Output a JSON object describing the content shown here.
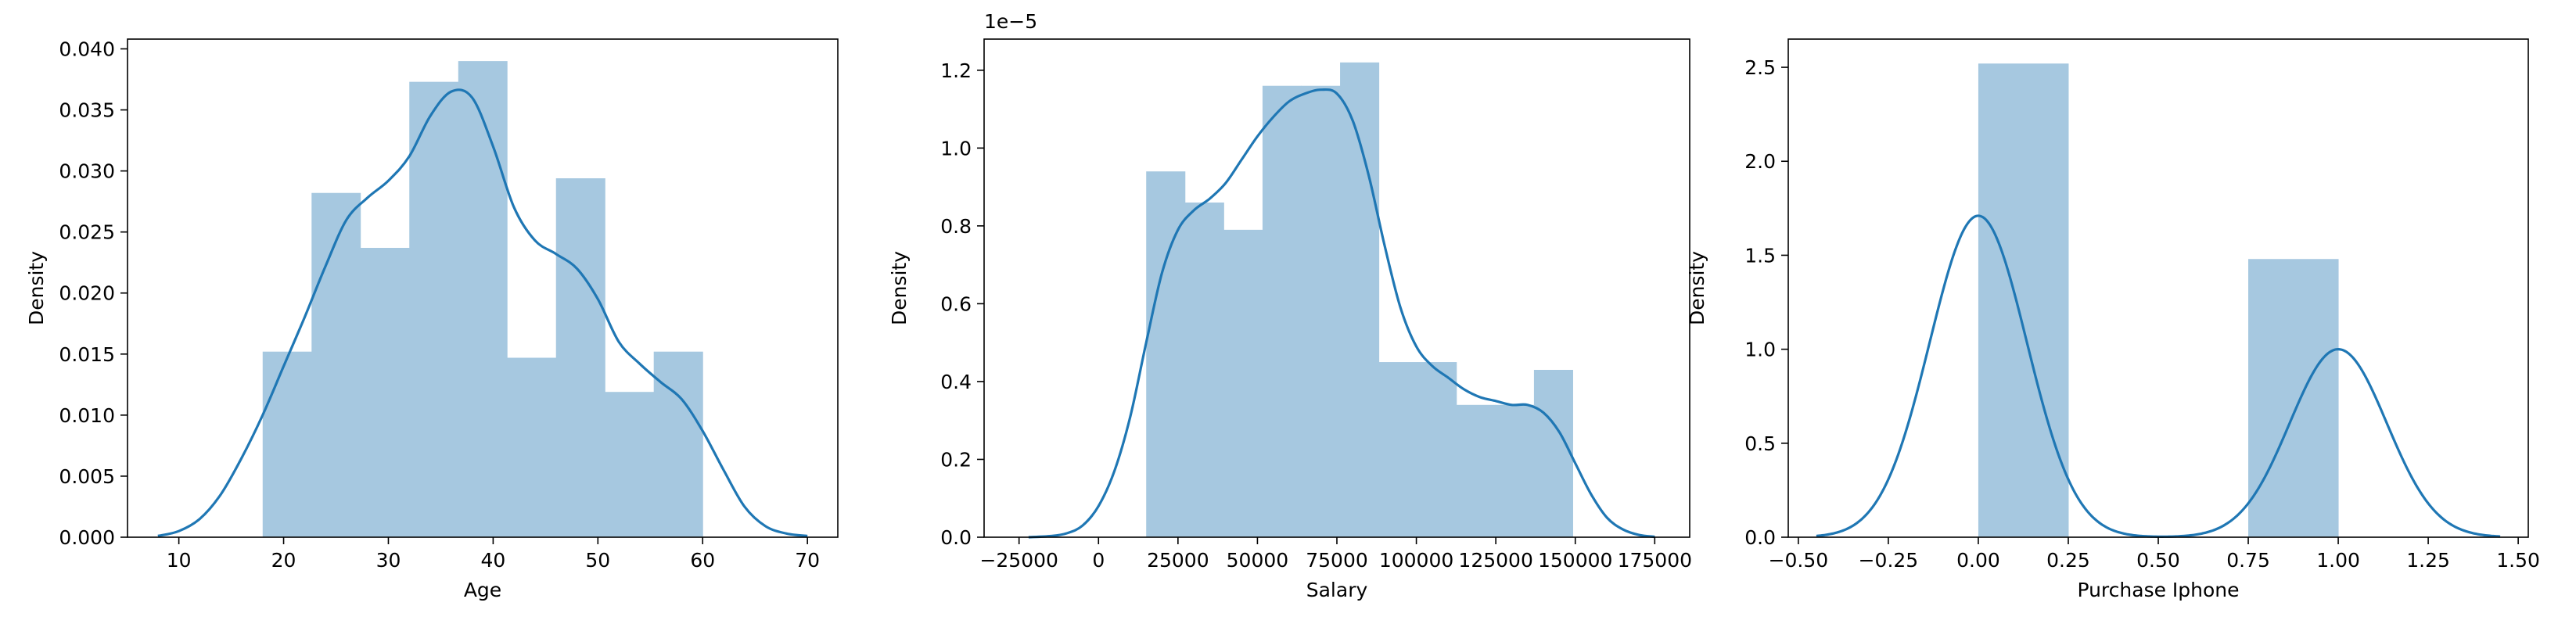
{
  "chart_data": [
    {
      "type": "histogram",
      "xlabel": "Age",
      "ylabel": "Density",
      "xlim": [
        5.1,
        72.9
      ],
      "ylim": [
        0,
        0.0408
      ],
      "xticks": [
        10,
        20,
        30,
        40,
        50,
        60,
        70
      ],
      "yticks": [
        0.0,
        0.005,
        0.01,
        0.015,
        0.02,
        0.025,
        0.03,
        0.035,
        0.04
      ],
      "tick_labels_y": [
        "0.000",
        "0.005",
        "0.010",
        "0.015",
        "0.020",
        "0.025",
        "0.030",
        "0.035",
        "0.040"
      ],
      "tick_labels_x": [
        "10",
        "20",
        "30",
        "40",
        "50",
        "60",
        "70"
      ],
      "bar_color": "#a6c8e0",
      "line_color": "#1f77b4",
      "bins": [
        {
          "x0": 18.0,
          "x1": 22.67,
          "density": 0.0152
        },
        {
          "x0": 22.67,
          "x1": 27.33,
          "density": 0.0282
        },
        {
          "x0": 27.33,
          "x1": 32.0,
          "density": 0.0237
        },
        {
          "x0": 32.0,
          "x1": 36.67,
          "density": 0.0373
        },
        {
          "x0": 36.67,
          "x1": 41.33,
          "density": 0.039
        },
        {
          "x0": 41.33,
          "x1": 46.0,
          "density": 0.0147
        },
        {
          "x0": 46.0,
          "x1": 50.67,
          "density": 0.0294
        },
        {
          "x0": 50.67,
          "x1": 55.33,
          "density": 0.0119
        },
        {
          "x0": 55.33,
          "x1": 60.0,
          "density": 0.0152
        }
      ],
      "kde": {
        "x": [
          8,
          10,
          12,
          14,
          16,
          18,
          20,
          22,
          24,
          26,
          28,
          30,
          32,
          34,
          36,
          38,
          40,
          42,
          44,
          46,
          48,
          50,
          52,
          54,
          56,
          58,
          60,
          62,
          64,
          66,
          68,
          70
        ],
        "y": [
          0.0001,
          0.0005,
          0.0015,
          0.0035,
          0.0065,
          0.01,
          0.014,
          0.018,
          0.0222,
          0.026,
          0.0278,
          0.0292,
          0.0312,
          0.0345,
          0.0365,
          0.036,
          0.032,
          0.027,
          0.0243,
          0.0232,
          0.022,
          0.0195,
          0.016,
          0.0142,
          0.0127,
          0.0113,
          0.0087,
          0.0055,
          0.0025,
          0.0009,
          0.0003,
          0.0001
        ]
      }
    },
    {
      "type": "histogram",
      "xlabel": "Salary",
      "ylabel": "Density",
      "offset_text": "1e−5",
      "xlim": [
        -36000,
        186000
      ],
      "ylim": [
        0,
        1.28
      ],
      "xticks": [
        -25000,
        0,
        25000,
        50000,
        75000,
        100000,
        125000,
        150000,
        175000
      ],
      "tick_labels_x": [
        "−25000",
        "0",
        "25000",
        "50000",
        "75000",
        "100000",
        "125000",
        "150000",
        "175000"
      ],
      "yticks": [
        0.0,
        0.2,
        0.4,
        0.6,
        0.8,
        1.0,
        1.2
      ],
      "tick_labels_y": [
        "0.0",
        "0.2",
        "0.4",
        "0.6",
        "0.8",
        "1.0",
        "1.2"
      ],
      "bar_color": "#a6c8e0",
      "line_color": "#1f77b4",
      "bins": [
        {
          "x0": 15000,
          "x1": 27200,
          "density": 0.94
        },
        {
          "x0": 27200,
          "x1": 39400,
          "density": 0.86
        },
        {
          "x0": 39400,
          "x1": 51600,
          "density": 0.79
        },
        {
          "x0": 51600,
          "x1": 63800,
          "density": 1.16
        },
        {
          "x0": 63800,
          "x1": 76000,
          "density": 1.16
        },
        {
          "x0": 76000,
          "x1": 88200,
          "density": 1.22
        },
        {
          "x0": 88200,
          "x1": 100400,
          "density": 0.45
        },
        {
          "x0": 100400,
          "x1": 112600,
          "density": 0.45
        },
        {
          "x0": 112600,
          "x1": 124800,
          "density": 0.34
        },
        {
          "x0": 124800,
          "x1": 137000,
          "density": 0.34
        },
        {
          "x0": 137000,
          "x1": 149200,
          "density": 0.43
        }
      ],
      "kde": {
        "x": [
          -22000,
          -15000,
          -10000,
          -5000,
          0,
          5000,
          10000,
          15000,
          20000,
          25000,
          30000,
          35000,
          40000,
          45000,
          50000,
          55000,
          60000,
          65000,
          70000,
          75000,
          80000,
          85000,
          90000,
          95000,
          100000,
          105000,
          110000,
          115000,
          120000,
          125000,
          130000,
          135000,
          140000,
          145000,
          150000,
          155000,
          160000,
          165000,
          170000,
          175000
        ],
        "y": [
          0.0,
          0.003,
          0.01,
          0.03,
          0.08,
          0.17,
          0.31,
          0.5,
          0.68,
          0.79,
          0.84,
          0.87,
          0.91,
          0.97,
          1.03,
          1.08,
          1.12,
          1.14,
          1.15,
          1.14,
          1.07,
          0.93,
          0.75,
          0.59,
          0.49,
          0.44,
          0.41,
          0.38,
          0.36,
          0.35,
          0.34,
          0.34,
          0.32,
          0.27,
          0.19,
          0.11,
          0.05,
          0.02,
          0.006,
          0.001
        ]
      }
    },
    {
      "type": "histogram",
      "xlabel": "Purchase Iphone",
      "ylabel": "Density",
      "xlim": [
        -0.528,
        1.528
      ],
      "ylim": [
        0,
        2.65
      ],
      "xticks": [
        -0.5,
        -0.25,
        0.0,
        0.25,
        0.5,
        0.75,
        1.0,
        1.25,
        1.5
      ],
      "tick_labels_x": [
        "−0.50",
        "−0.25",
        "0.00",
        "0.25",
        "0.50",
        "0.75",
        "1.00",
        "1.25",
        "1.50"
      ],
      "yticks": [
        0.0,
        0.5,
        1.0,
        1.5,
        2.0,
        2.5
      ],
      "tick_labels_y": [
        "0.0",
        "0.5",
        "1.0",
        "1.5",
        "2.0",
        "2.5"
      ],
      "bar_color": "#a6c8e0",
      "line_color": "#1f77b4",
      "bins": [
        {
          "x0": 0.0,
          "x1": 0.25,
          "density": 2.52
        },
        {
          "x0": 0.25,
          "x1": 0.5,
          "density": 0.0
        },
        {
          "x0": 0.5,
          "x1": 0.75,
          "density": 0.0
        },
        {
          "x0": 0.75,
          "x1": 1.0,
          "density": 1.48
        }
      ],
      "kde": {
        "gaussian_mixture": [
          {
            "mu": 0.0,
            "peak": 1.71,
            "sigma": 0.135
          },
          {
            "mu": 1.0,
            "peak": 1.0,
            "sigma": 0.135
          }
        ],
        "x_range": [
          -0.45,
          1.45
        ]
      }
    }
  ]
}
